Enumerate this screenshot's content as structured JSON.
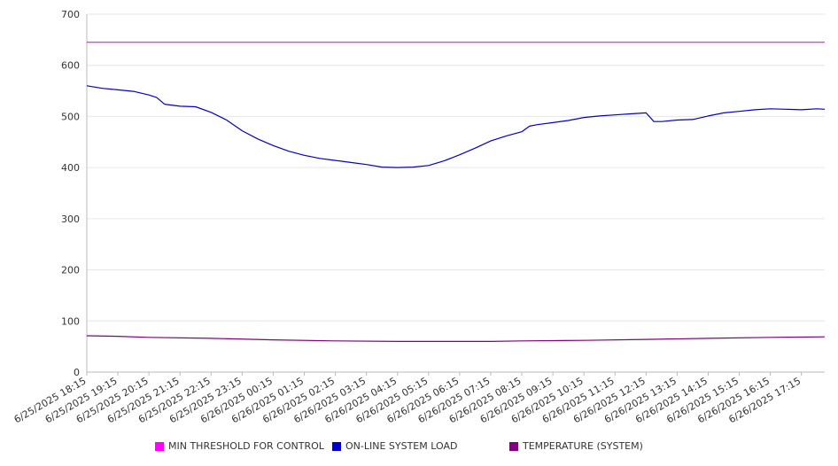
{
  "chart_data": {
    "type": "line",
    "title": "",
    "xlabel": "",
    "ylabel": "",
    "ylim": [
      0,
      700
    ],
    "yticks": [
      0,
      100,
      200,
      300,
      400,
      500,
      600,
      700
    ],
    "grid": true,
    "legend_position": "bottom",
    "x_tick_labels": [
      "6/25/2025 18:15",
      "6/25/2025 19:15",
      "6/25/2025 20:15",
      "6/25/2025 21:15",
      "6/25/2025 22:15",
      "6/25/2025 23:15",
      "6/26/2025 00:15",
      "6/26/2025 01:15",
      "6/26/2025 02:15",
      "6/26/2025 03:15",
      "6/26/2025 04:15",
      "6/26/2025 05:15",
      "6/26/2025 06:15",
      "6/26/2025 07:15",
      "6/26/2025 08:15",
      "6/26/2025 09:15",
      "6/26/2025 10:15",
      "6/26/2025 11:15",
      "6/26/2025 12:15",
      "6/26/2025 13:15",
      "6/26/2025 14:15",
      "6/26/2025 15:15",
      "6/26/2025 16:15",
      "6/26/2025 17:15"
    ],
    "x_range": [
      "6/25/2025 18:15",
      "6/26/2025 18:00"
    ],
    "series": [
      {
        "name": "MIN THRESHOLD FOR CONTROL",
        "color": "#ff00ff",
        "points": [
          [
            "6/25/2025 18:15",
            645
          ],
          [
            "6/26/2025 18:00",
            645
          ]
        ]
      },
      {
        "name": "ON-LINE SYSTEM LOAD",
        "color": "#0000cc",
        "points": [
          [
            "6/25/2025 18:15",
            560
          ],
          [
            "6/25/2025 18:45",
            555
          ],
          [
            "6/25/2025 19:15",
            552
          ],
          [
            "6/25/2025 19:45",
            549
          ],
          [
            "6/25/2025 20:15",
            542
          ],
          [
            "6/25/2025 20:30",
            537
          ],
          [
            "6/25/2025 20:45",
            524
          ],
          [
            "6/25/2025 21:15",
            520
          ],
          [
            "6/25/2025 21:45",
            519
          ],
          [
            "6/25/2025 22:15",
            508
          ],
          [
            "6/25/2025 22:45",
            493
          ],
          [
            "6/25/2025 23:15",
            472
          ],
          [
            "6/25/2025 23:45",
            456
          ],
          [
            "6/26/2025 00:15",
            443
          ],
          [
            "6/26/2025 00:45",
            432
          ],
          [
            "6/26/2025 01:15",
            424
          ],
          [
            "6/26/2025 01:45",
            418
          ],
          [
            "6/26/2025 02:15",
            414
          ],
          [
            "6/26/2025 02:45",
            410
          ],
          [
            "6/26/2025 03:15",
            406
          ],
          [
            "6/26/2025 03:45",
            401
          ],
          [
            "6/26/2025 04:15",
            400
          ],
          [
            "6/26/2025 04:45",
            401
          ],
          [
            "6/26/2025 05:15",
            404
          ],
          [
            "6/26/2025 05:45",
            413
          ],
          [
            "6/26/2025 06:15",
            425
          ],
          [
            "6/26/2025 06:45",
            438
          ],
          [
            "6/26/2025 07:15",
            452
          ],
          [
            "6/26/2025 07:45",
            462
          ],
          [
            "6/26/2025 08:15",
            470
          ],
          [
            "6/26/2025 08:30",
            481
          ],
          [
            "6/26/2025 08:45",
            484
          ],
          [
            "6/26/2025 09:15",
            488
          ],
          [
            "6/26/2025 09:45",
            492
          ],
          [
            "6/26/2025 10:15",
            498
          ],
          [
            "6/26/2025 10:45",
            501
          ],
          [
            "6/26/2025 11:15",
            503
          ],
          [
            "6/26/2025 11:45",
            505
          ],
          [
            "6/26/2025 12:15",
            507
          ],
          [
            "6/26/2025 12:30",
            490
          ],
          [
            "6/26/2025 12:45",
            490
          ],
          [
            "6/26/2025 13:15",
            493
          ],
          [
            "6/26/2025 13:45",
            494
          ],
          [
            "6/26/2025 14:15",
            501
          ],
          [
            "6/26/2025 14:45",
            507
          ],
          [
            "6/26/2025 15:15",
            510
          ],
          [
            "6/26/2025 15:45",
            513
          ],
          [
            "6/26/2025 16:15",
            515
          ],
          [
            "6/26/2025 16:45",
            514
          ],
          [
            "6/26/2025 17:15",
            513
          ],
          [
            "6/26/2025 17:45",
            515
          ],
          [
            "6/26/2025 18:00",
            514
          ]
        ]
      },
      {
        "name": "TEMPERATURE (SYSTEM)",
        "color": "#800080",
        "points": [
          [
            "6/25/2025 18:15",
            71
          ],
          [
            "6/25/2025 19:15",
            70
          ],
          [
            "6/25/2025 20:15",
            68
          ],
          [
            "6/25/2025 22:15",
            66
          ],
          [
            "6/26/2025 00:15",
            63
          ],
          [
            "6/26/2025 02:15",
            61
          ],
          [
            "6/26/2025 04:15",
            60
          ],
          [
            "6/26/2025 07:15",
            60
          ],
          [
            "6/26/2025 08:15",
            61
          ],
          [
            "6/26/2025 10:15",
            62
          ],
          [
            "6/26/2025 12:15",
            64
          ],
          [
            "6/26/2025 14:15",
            66
          ],
          [
            "6/26/2025 16:15",
            68
          ],
          [
            "6/26/2025 18:00",
            69
          ]
        ]
      }
    ]
  }
}
